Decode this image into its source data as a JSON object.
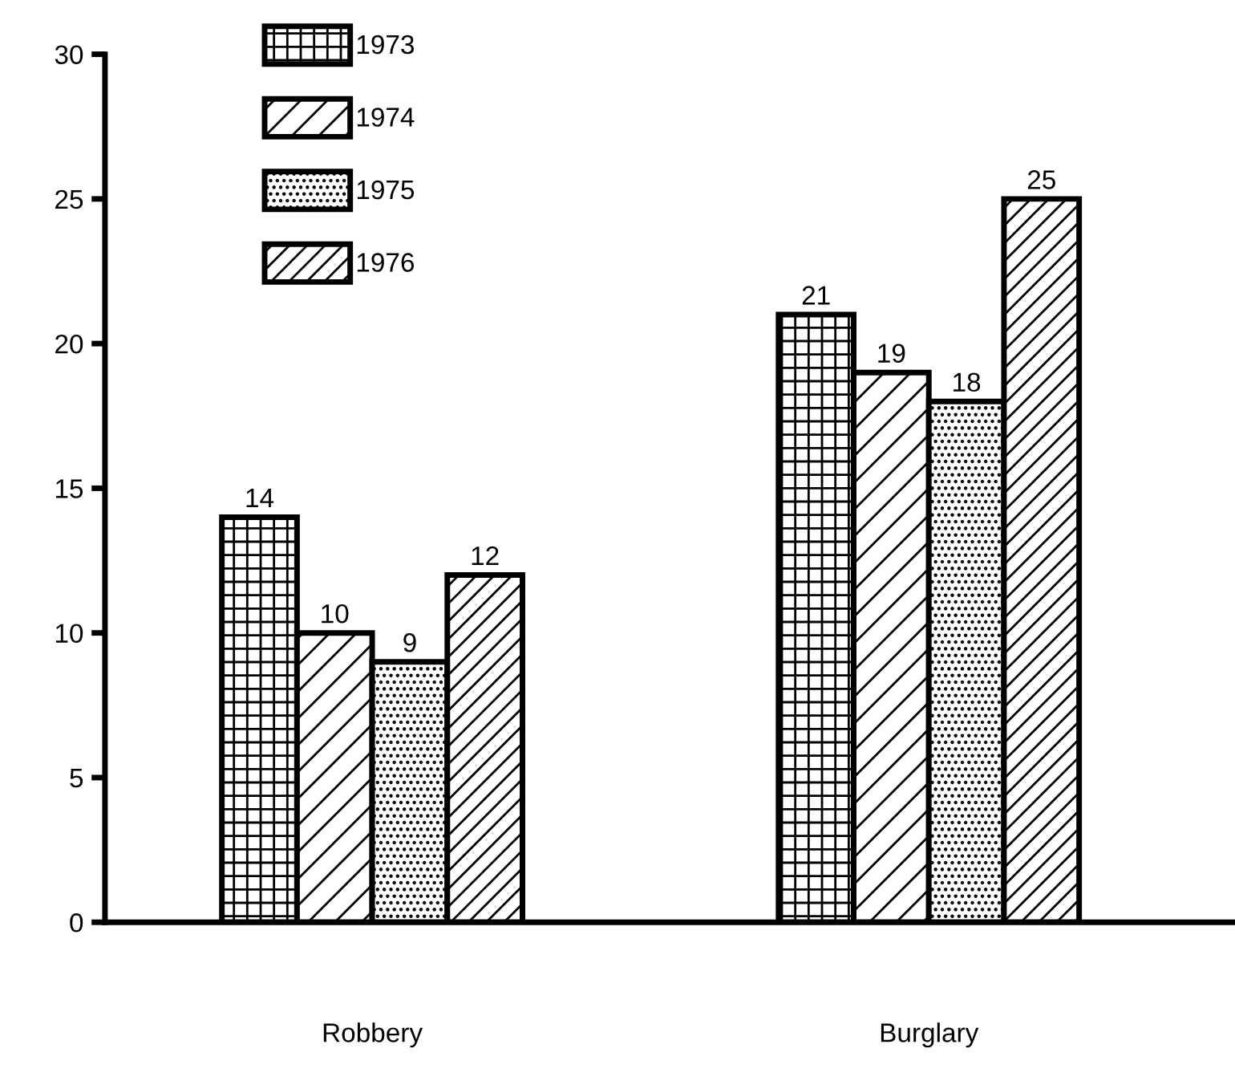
{
  "chart_data": {
    "type": "bar",
    "categories": [
      "Robbery",
      "Burglary"
    ],
    "series": [
      {
        "name": "1973",
        "color": "#000000",
        "values": [
          14,
          21
        ]
      },
      {
        "name": "1974",
        "color": "#000000",
        "values": [
          10,
          19
        ]
      },
      {
        "name": "1975",
        "color": "#000000",
        "values": [
          9,
          18
        ]
      },
      {
        "name": "1976",
        "color": "#000000",
        "values": [
          12,
          25
        ]
      }
    ],
    "ylim": [
      0,
      30
    ],
    "yticks": [
      0,
      5,
      10,
      15,
      20,
      25,
      30
    ],
    "data_labels": true,
    "legend": "top left",
    "grid": false
  }
}
